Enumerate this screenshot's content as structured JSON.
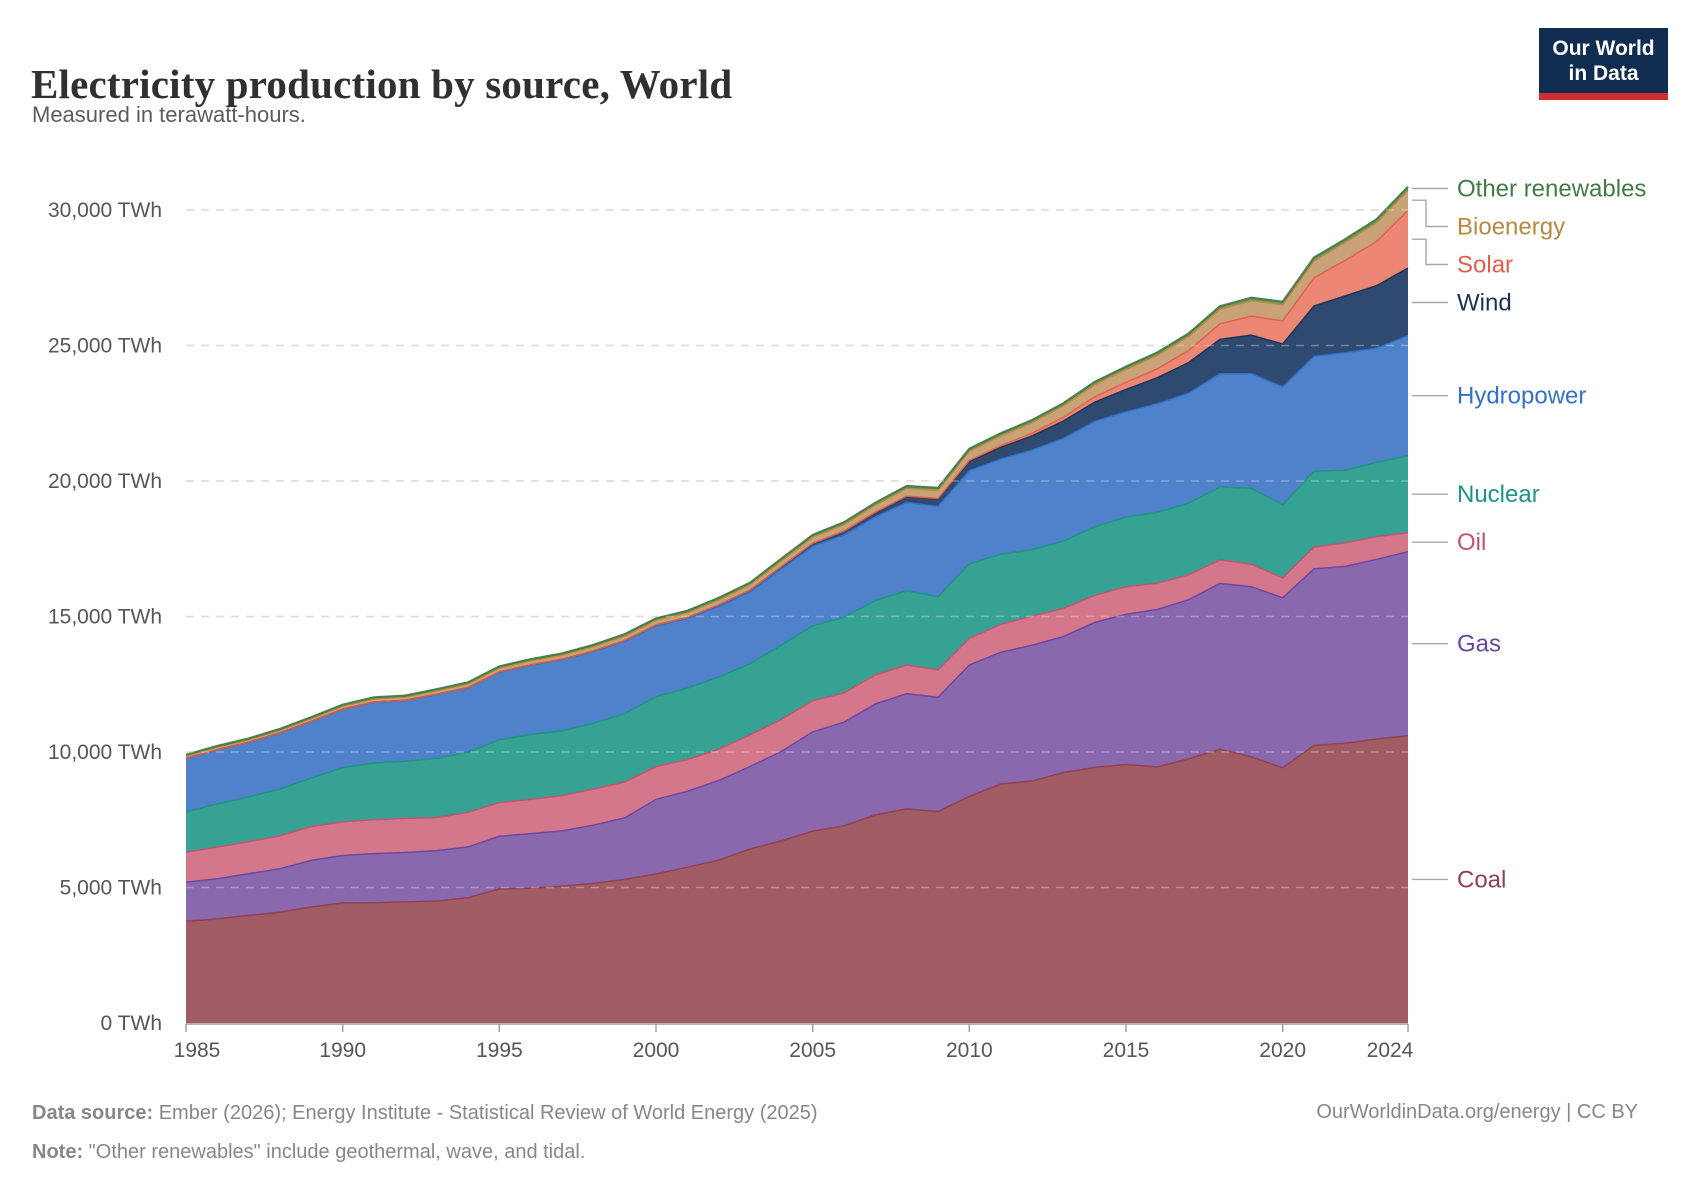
{
  "header": {
    "title": "Electricity production by source, World",
    "subtitle": "Measured in terawatt-hours.",
    "logo_line1": "Our World",
    "logo_line2": "in Data",
    "logo_bg_color": "#102d4f",
    "logo_accent_color": "#cf2d32"
  },
  "footer": {
    "sources_label": "Data source:",
    "sources": "Ember (2026); Energy Institute - Statistical Review of World Energy (2025)",
    "note_label": "Note:",
    "note": "\"Other renewables\" include geothermal, wave, and tidal.",
    "credit": "OurWorldinData.org/energy | CC BY"
  },
  "chart_data": {
    "type": "area",
    "stacked": true,
    "title": "Electricity production by source, World",
    "unit": "TWh",
    "grid": "dashed-horizontal",
    "legend_position": "right",
    "ylim": [
      0,
      31500
    ],
    "x": [
      1985,
      1986,
      1987,
      1988,
      1989,
      1990,
      1991,
      1992,
      1993,
      1994,
      1995,
      1996,
      1997,
      1998,
      1999,
      2000,
      2001,
      2002,
      2003,
      2004,
      2005,
      2006,
      2007,
      2008,
      2009,
      2010,
      2011,
      2012,
      2013,
      2014,
      2015,
      2016,
      2017,
      2018,
      2019,
      2020,
      2021,
      2022,
      2023,
      2024
    ],
    "x_ticks": [
      1985,
      1990,
      1995,
      2000,
      2005,
      2010,
      2015,
      2020,
      2024
    ],
    "y_ticks": [
      {
        "value": 0,
        "label": "0 TWh"
      },
      {
        "value": 5000,
        "label": "5,000 TWh"
      },
      {
        "value": 10000,
        "label": "10,000 TWh"
      },
      {
        "value": 15000,
        "label": "15,000 TWh"
      },
      {
        "value": 20000,
        "label": "20,000 TWh"
      },
      {
        "value": 25000,
        "label": "25,000 TWh"
      },
      {
        "value": 30000,
        "label": "30,000 TWh"
      }
    ],
    "series": [
      {
        "name": "Coal",
        "fill": "#a15b63",
        "line": "#933d50",
        "values": [
          3748,
          3840,
          3970,
          4085,
          4280,
          4430,
          4440,
          4470,
          4500,
          4620,
          4950,
          4970,
          5050,
          5150,
          5300,
          5500,
          5750,
          6010,
          6420,
          6720,
          7080,
          7280,
          7680,
          7900,
          7800,
          8360,
          8820,
          8930,
          9240,
          9430,
          9540,
          9450,
          9750,
          10100,
          9820,
          9420,
          10240,
          10320,
          10480,
          10600
        ]
      },
      {
        "name": "Gas",
        "fill": "#8a68ae",
        "line": "#6a45a0",
        "values": [
          1443,
          1480,
          1540,
          1610,
          1720,
          1750,
          1810,
          1820,
          1860,
          1880,
          1940,
          2020,
          2040,
          2150,
          2270,
          2750,
          2800,
          2940,
          3040,
          3300,
          3660,
          3820,
          4090,
          4250,
          4220,
          4850,
          4860,
          5010,
          5020,
          5350,
          5540,
          5810,
          5870,
          6120,
          6280,
          6270,
          6520,
          6530,
          6630,
          6790
        ]
      },
      {
        "name": "Oil",
        "fill": "#d4778b",
        "line": "#c4536e",
        "values": [
          1110,
          1170,
          1180,
          1210,
          1250,
          1240,
          1250,
          1260,
          1220,
          1270,
          1240,
          1260,
          1300,
          1330,
          1320,
          1210,
          1170,
          1150,
          1170,
          1180,
          1150,
          1080,
          1070,
          1060,
          1010,
          980,
          1030,
          1070,
          1040,
          1000,
          1020,
          970,
          920,
          870,
          830,
          730,
          800,
          870,
          840,
          700
        ]
      },
      {
        "name": "Nuclear",
        "fill": "#35a294",
        "line": "#1f9483",
        "values": [
          1489,
          1596,
          1653,
          1722,
          1788,
          2000,
          2096,
          2110,
          2185,
          2225,
          2320,
          2400,
          2390,
          2430,
          2530,
          2582,
          2640,
          2660,
          2630,
          2740,
          2768,
          2790,
          2750,
          2740,
          2700,
          2756,
          2584,
          2460,
          2480,
          2530,
          2571,
          2610,
          2640,
          2700,
          2796,
          2700,
          2800,
          2680,
          2740,
          2844
        ]
      },
      {
        "name": "Hydropower",
        "fill": "#4f82ca",
        "line": "#3471c8",
        "values": [
          1979,
          2000,
          2020,
          2080,
          2090,
          2159,
          2245,
          2240,
          2360,
          2375,
          2497,
          2555,
          2629,
          2650,
          2670,
          2613,
          2560,
          2610,
          2650,
          2810,
          2934,
          3040,
          3080,
          3260,
          3330,
          3437,
          3510,
          3670,
          3790,
          3890,
          3879,
          4010,
          4060,
          4170,
          4235,
          4347,
          4237,
          4334,
          4210,
          4430
        ]
      },
      {
        "name": "Wind",
        "fill": "#2e4a70",
        "line": "#1c3254",
        "values": [
          0,
          0,
          0,
          1,
          2,
          4,
          4,
          5,
          6,
          7,
          8,
          9,
          12,
          16,
          21,
          31,
          38,
          52,
          63,
          85,
          104,
          133,
          171,
          221,
          276,
          342,
          434,
          524,
          645,
          709,
          831,
          960,
          1134,
          1265,
          1420,
          1590,
          1860,
          2100,
          2310,
          2494
        ]
      },
      {
        "name": "Solar",
        "fill": "#ec8775",
        "line": "#e1604a",
        "values": [
          0,
          0,
          0,
          0,
          0,
          0,
          0,
          0,
          1,
          1,
          1,
          1,
          1,
          1,
          1,
          1,
          1,
          2,
          2,
          3,
          4,
          5,
          7,
          12,
          20,
          32,
          63,
          96,
          135,
          197,
          256,
          329,
          443,
          574,
          704,
          846,
          1040,
          1310,
          1630,
          2132
        ]
      },
      {
        "name": "Bioenergy",
        "fill": "#c9a377",
        "line": "#b9883f",
        "values": [
          88,
          92,
          96,
          100,
          108,
          112,
          118,
          122,
          128,
          134,
          140,
          146,
          152,
          158,
          166,
          172,
          178,
          186,
          196,
          210,
          227,
          244,
          262,
          283,
          300,
          340,
          365,
          390,
          420,
          450,
          484,
          500,
          520,
          545,
          570,
          602,
          630,
          660,
          700,
          740
        ]
      },
      {
        "name": "Other renewables",
        "fill": "#69975f",
        "line": "#417c46",
        "values": [
          40,
          42,
          44,
          46,
          50,
          52,
          54,
          56,
          58,
          60,
          62,
          64,
          66,
          68,
          70,
          72,
          74,
          76,
          78,
          80,
          82,
          84,
          86,
          88,
          90,
          92,
          94,
          96,
          98,
          100,
          102,
          104,
          106,
          108,
          110,
          112,
          116,
          119,
          122,
          126
        ]
      }
    ]
  }
}
